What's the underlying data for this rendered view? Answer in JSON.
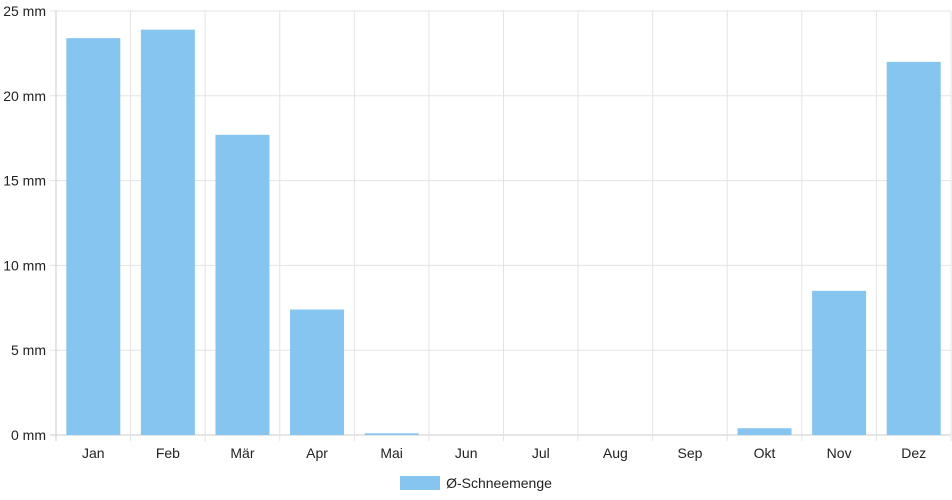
{
  "chart_data": {
    "type": "bar",
    "categories": [
      "Jan",
      "Feb",
      "Mär",
      "Apr",
      "Mai",
      "Jun",
      "Jul",
      "Aug",
      "Sep",
      "Okt",
      "Nov",
      "Dez"
    ],
    "series": [
      {
        "name": "Ø-Schneemenge",
        "values": [
          23.4,
          23.9,
          17.7,
          7.4,
          0.1,
          0,
          0,
          0,
          0,
          0.4,
          8.5,
          22.0
        ]
      }
    ],
    "ylim": [
      0,
      25
    ],
    "yticks": [
      0,
      5,
      10,
      15,
      20,
      25
    ],
    "ytick_labels": [
      "0 mm",
      "5 mm",
      "10 mm",
      "15 mm",
      "20 mm",
      "25 mm"
    ],
    "grid": true,
    "legend": "bottom-center",
    "colors": {
      "bar": "#87c5f1",
      "grid": "#e3e3e3",
      "axis": "#cccccc"
    }
  }
}
